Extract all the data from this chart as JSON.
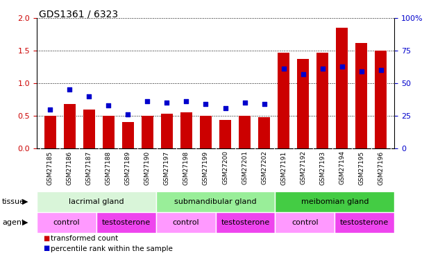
{
  "title": "GDS1361 / 6323",
  "samples": [
    "GSM27185",
    "GSM27186",
    "GSM27187",
    "GSM27188",
    "GSM27189",
    "GSM27190",
    "GSM27197",
    "GSM27198",
    "GSM27199",
    "GSM27200",
    "GSM27201",
    "GSM27202",
    "GSM27191",
    "GSM27192",
    "GSM27193",
    "GSM27194",
    "GSM27195",
    "GSM27196"
  ],
  "transformed_count": [
    0.5,
    0.68,
    0.6,
    0.5,
    0.4,
    0.5,
    0.53,
    0.55,
    0.5,
    0.43,
    0.5,
    0.48,
    1.47,
    1.37,
    1.47,
    1.85,
    1.62,
    1.5
  ],
  "percentile_rank": [
    30,
    45,
    40,
    33,
    26,
    36,
    35,
    36,
    34,
    31,
    35,
    34,
    61,
    57,
    61,
    63,
    59,
    60
  ],
  "bar_color": "#cc0000",
  "dot_color": "#0000cc",
  "ylim_left": [
    0,
    2
  ],
  "ylim_right": [
    0,
    100
  ],
  "yticks_left": [
    0,
    0.5,
    1.0,
    1.5,
    2.0
  ],
  "yticks_right": [
    0,
    25,
    50,
    75,
    100
  ],
  "tissue_groups": [
    {
      "label": "lacrimal gland",
      "start": 0,
      "end": 6,
      "color": "#d9f5d9"
    },
    {
      "label": "submandibular gland",
      "start": 6,
      "end": 12,
      "color": "#99ee99"
    },
    {
      "label": "meibomian gland",
      "start": 12,
      "end": 18,
      "color": "#44cc44"
    }
  ],
  "agent_groups": [
    {
      "label": "control",
      "start": 0,
      "end": 3,
      "color": "#ff99ff"
    },
    {
      "label": "testosterone",
      "start": 3,
      "end": 6,
      "color": "#ee44ee"
    },
    {
      "label": "control",
      "start": 6,
      "end": 9,
      "color": "#ff99ff"
    },
    {
      "label": "testosterone",
      "start": 9,
      "end": 12,
      "color": "#ee44ee"
    },
    {
      "label": "control",
      "start": 12,
      "end": 15,
      "color": "#ff99ff"
    },
    {
      "label": "testosterone",
      "start": 15,
      "end": 18,
      "color": "#ee44ee"
    }
  ],
  "legend_items": [
    {
      "label": "transformed count",
      "color": "#cc0000"
    },
    {
      "label": "percentile rank within the sample",
      "color": "#0000cc"
    }
  ],
  "tissue_label": "tissue",
  "agent_label": "agent",
  "background_color": "#ffffff",
  "tick_label_color_left": "#cc0000",
  "tick_label_color_right": "#0000cc",
  "xlabel_bg": "#cccccc"
}
